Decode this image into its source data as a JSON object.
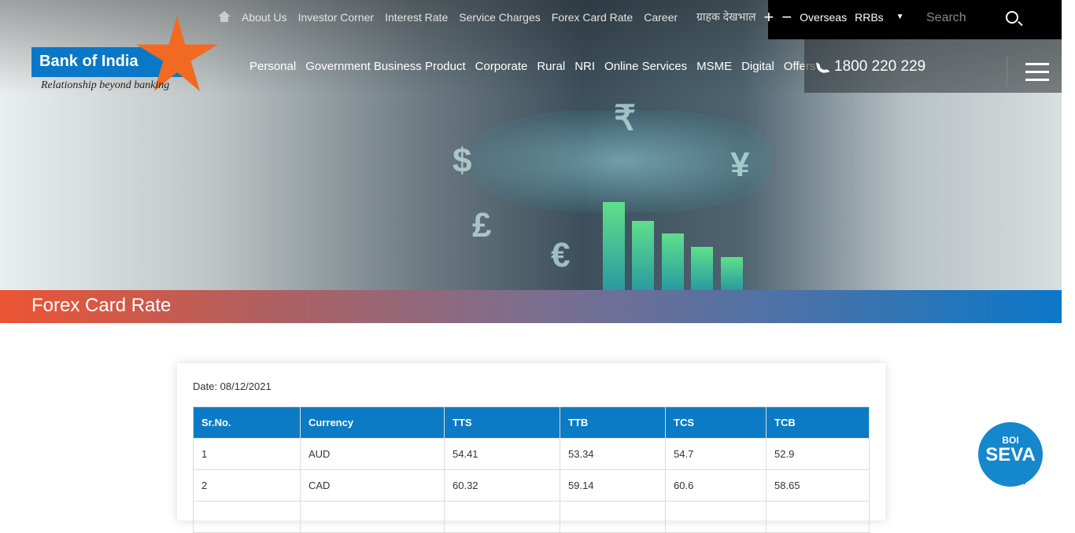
{
  "logo": {
    "name": "Bank of India",
    "tagline": "Relationship beyond banking"
  },
  "top_nav": [
    "About Us",
    "Investor Corner",
    "Interest Rate",
    "Service Charges",
    "Forex Card Rate",
    "Career"
  ],
  "top_right": {
    "hindi": "ग्राहक देखभाल",
    "plus": "+",
    "minus": "−",
    "overseas": "Overseas",
    "rrbs": "RRBs",
    "search_placeholder": "Search"
  },
  "main_nav": [
    "Personal",
    "Government Business Product",
    "Corporate",
    "Rural",
    "NRI",
    "Online Services",
    "MSME",
    "Digital",
    "Offers"
  ],
  "phone": "1800 220 229",
  "page_title": "Forex Card Rate",
  "date": "Date: 08/12/2021",
  "table": {
    "headers": [
      "Sr.No.",
      "Currency",
      "TTS",
      "TTB",
      "TCS",
      "TCB"
    ],
    "rows": [
      [
        "1",
        "AUD",
        "54.41",
        "53.34",
        "54.7",
        "52.9"
      ],
      [
        "2",
        "CAD",
        "60.32",
        "59.14",
        "60.6",
        "58.65"
      ]
    ]
  },
  "seva": {
    "top": "BOI",
    "main": "SEVA"
  },
  "colors": {
    "brand_blue": "#0a78c6",
    "star_orange": "#f26a21",
    "table_header": "#0a7bc4"
  }
}
